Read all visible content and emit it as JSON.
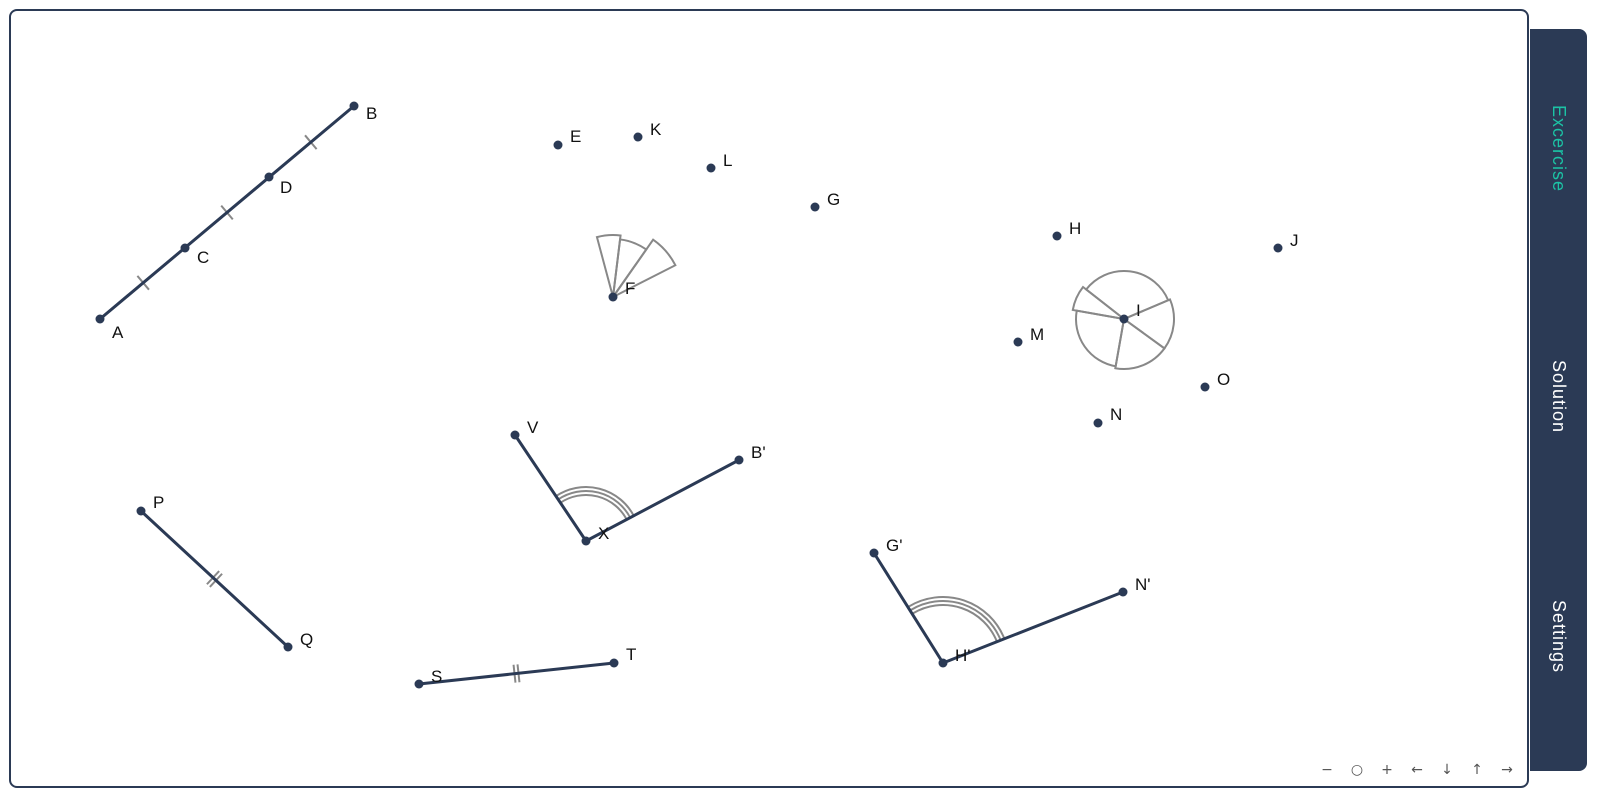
{
  "sidebar": {
    "tabs": [
      {
        "id": "excercise",
        "label": "Excercise",
        "active": true
      },
      {
        "id": "solution",
        "label": "Solution",
        "active": false
      },
      {
        "id": "settings",
        "label": "Settings",
        "active": false
      }
    ]
  },
  "colors": {
    "primary": "#2b3a55",
    "accent": "#1cc3a5",
    "marks": "#888888"
  },
  "points": [
    {
      "name": "A"
    },
    {
      "name": "B"
    },
    {
      "name": "C"
    },
    {
      "name": "D"
    },
    {
      "name": "E"
    },
    {
      "name": "K"
    },
    {
      "name": "L"
    },
    {
      "name": "G"
    },
    {
      "name": "F"
    },
    {
      "name": "H"
    },
    {
      "name": "J"
    },
    {
      "name": "I"
    },
    {
      "name": "M"
    },
    {
      "name": "O"
    },
    {
      "name": "N"
    },
    {
      "name": "V"
    },
    {
      "name": "B'"
    },
    {
      "name": "X"
    },
    {
      "name": "P"
    },
    {
      "name": "Q"
    },
    {
      "name": "S"
    },
    {
      "name": "T"
    },
    {
      "name": "G'"
    },
    {
      "name": "N'"
    },
    {
      "name": "H'"
    }
  ],
  "controls": {
    "zoom_out": "−",
    "reset": "○",
    "zoom_in": "+",
    "pan_left": "←",
    "pan_down": "↓",
    "pan_up": "↑",
    "pan_right": "→"
  }
}
